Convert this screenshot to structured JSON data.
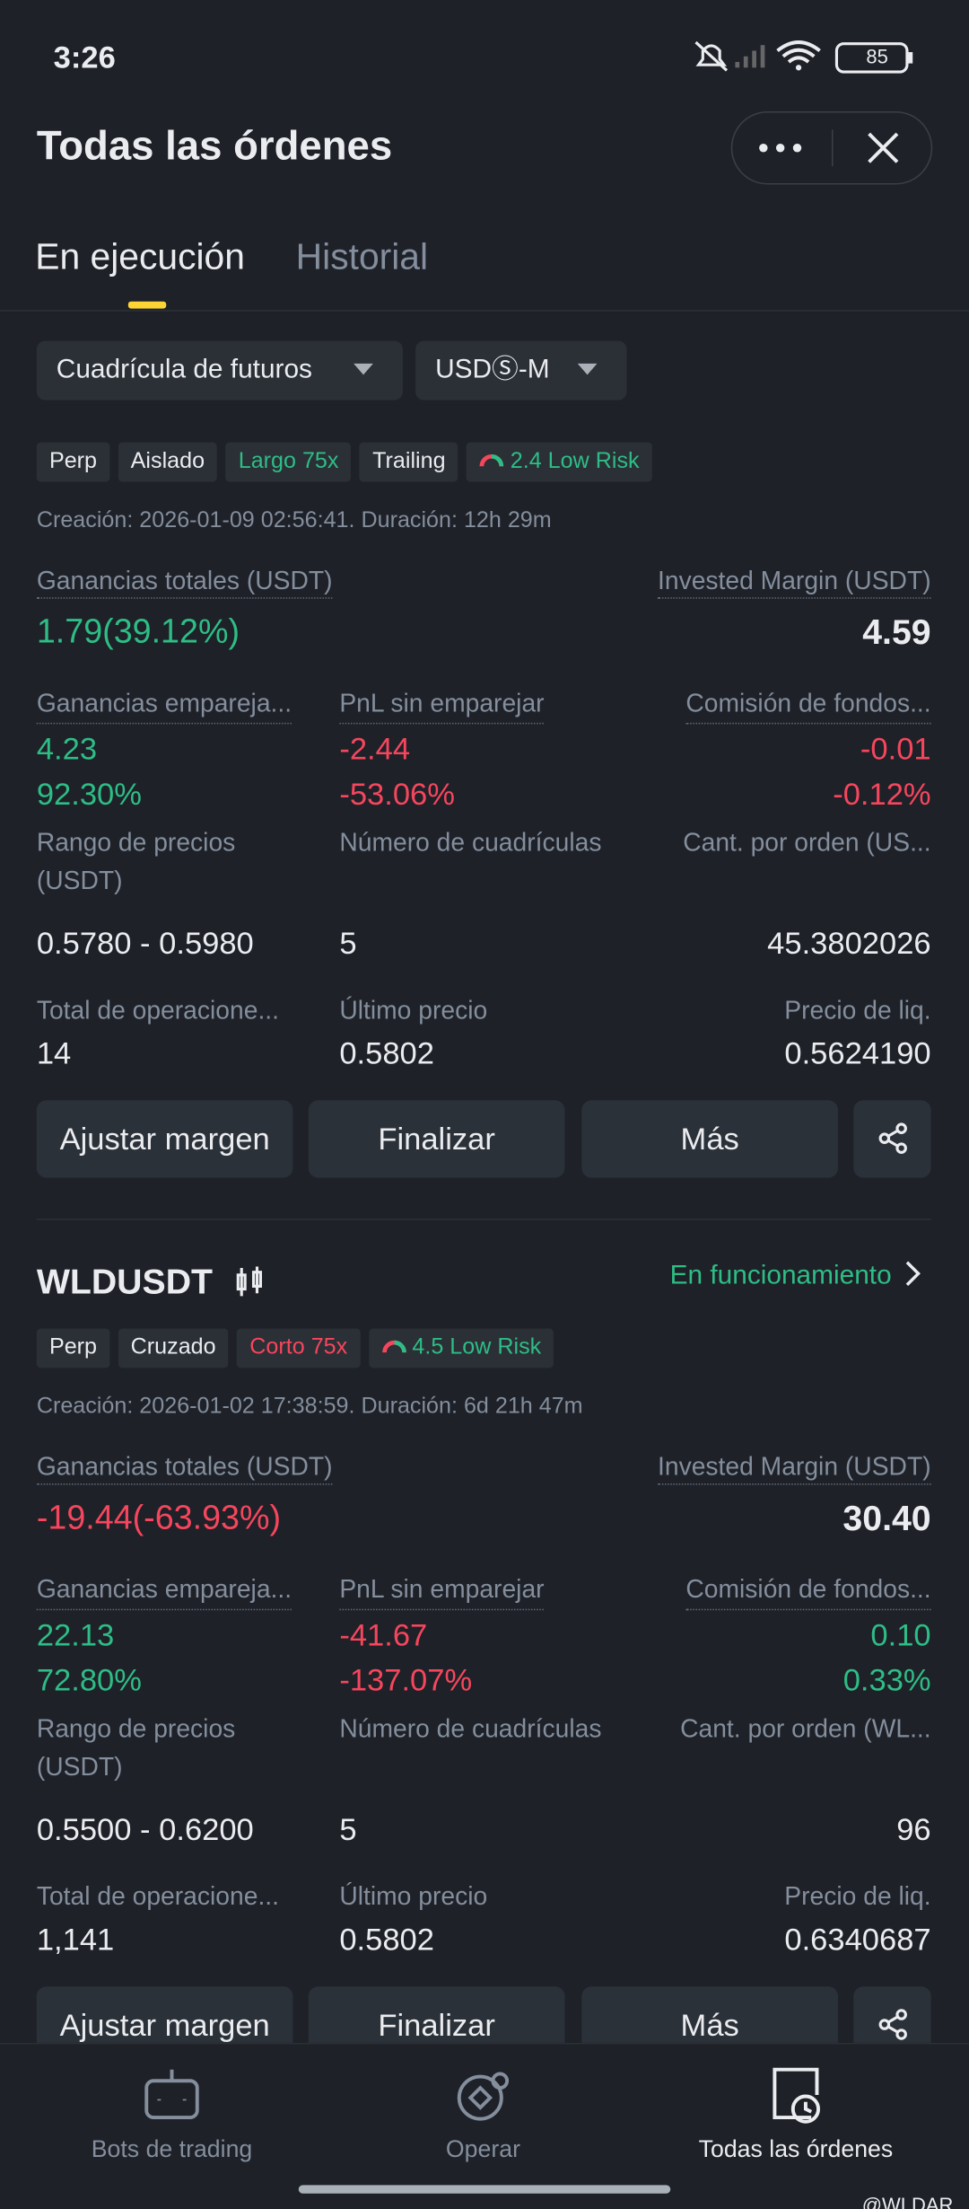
{
  "status_bar": {
    "time": "3:26",
    "battery": "85"
  },
  "header": {
    "title": "Todas las órdenes"
  },
  "tabs": [
    "En ejecución",
    "Historial"
  ],
  "filters": [
    "Cuadrícula de futuros",
    "USDⓈ-M"
  ],
  "orders": [
    {
      "tags": [
        {
          "text": "Perp"
        },
        {
          "text": "Aislado"
        },
        {
          "text": "Largo 75x",
          "color": "#2ebd85"
        },
        {
          "text": "Trailing"
        }
      ],
      "risk": "2.4 Low Risk",
      "created": "Creación: 2026-01-09 02:56:41. Duración: 12h 29m",
      "total": {
        "label": "Ganancias totales (USDT)",
        "value": "1.79(39.12%)",
        "color": "#2ebd85"
      },
      "margin": {
        "label": "Invested Margin (USDT)",
        "value": "4.59"
      },
      "rows": [
        [
          {
            "label": "Ganancias empareja...",
            "values": [
              "4.23",
              "92.30%"
            ],
            "color": "#2ebd85"
          },
          {
            "label": "PnL sin emparejar",
            "values": [
              "-2.44",
              "-53.06%"
            ],
            "color": "#f6465d"
          },
          {
            "label": "Comisión de fondos...",
            "values": [
              "-0.01",
              "-0.12%"
            ],
            "color": "#f6465d"
          }
        ],
        [
          {
            "label": "Rango de precios (USDT)",
            "values": [
              "0.5780 - 0.5980"
            ]
          },
          {
            "label": "Número de cuadrículas",
            "values": [
              "5"
            ]
          },
          {
            "label": "Cant. por orden (US...",
            "values": [
              "45.3802026"
            ]
          }
        ],
        [
          {
            "label": "Total de operacione...",
            "values": [
              "14"
            ]
          },
          {
            "label": "Último precio",
            "values": [
              "0.5802"
            ]
          },
          {
            "label": "Precio de liq.",
            "values": [
              "0.5624190"
            ]
          }
        ]
      ],
      "buttons": [
        "Ajustar margen",
        "Finalizar",
        "Más"
      ]
    },
    {
      "symbol": "WLDUSDT",
      "status": "En funcionamiento",
      "tags": [
        {
          "text": "Perp"
        },
        {
          "text": "Cruzado"
        },
        {
          "text": "Corto 75x",
          "color": "#f6465d"
        }
      ],
      "risk": "4.5 Low Risk",
      "created": "Creación: 2026-01-02 17:38:59. Duración: 6d 21h 47m",
      "total": {
        "label": "Ganancias totales (USDT)",
        "value": "-19.44(-63.93%)",
        "color": "#f6465d"
      },
      "margin": {
        "label": "Invested Margin (USDT)",
        "value": "30.40"
      },
      "rows": [
        [
          {
            "label": "Ganancias empareja...",
            "values": [
              "22.13",
              "72.80%"
            ],
            "color": "#2ebd85"
          },
          {
            "label": "PnL sin emparejar",
            "values": [
              "-41.67",
              "-137.07%"
            ],
            "color": "#f6465d"
          },
          {
            "label": "Comisión de fondos...",
            "values": [
              "0.10",
              "0.33%"
            ],
            "color": "#2ebd85"
          }
        ],
        [
          {
            "label": "Rango de precios (USDT)",
            "values": [
              "0.5500 - 0.6200"
            ]
          },
          {
            "label": "Número de cuadrículas",
            "values": [
              "5"
            ]
          },
          {
            "label": "Cant. por orden (WL...",
            "values": [
              "96"
            ]
          }
        ],
        [
          {
            "label": "Total de operacione...",
            "values": [
              "1,141"
            ]
          },
          {
            "label": "Último precio",
            "values": [
              "0.5802"
            ]
          },
          {
            "label": "Precio de liq.",
            "values": [
              "0.6340687"
            ]
          }
        ]
      ],
      "buttons": [
        "Ajustar margen",
        "Finalizar",
        "Más"
      ]
    }
  ],
  "nav": [
    "Bots de trading",
    "Operar",
    "Todas las órdenes"
  ],
  "watermark": "@WLDAR"
}
